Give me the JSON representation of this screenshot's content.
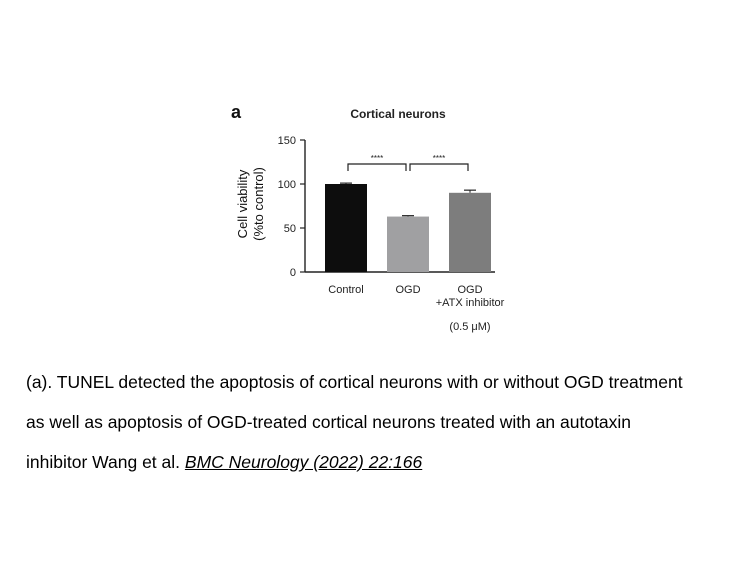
{
  "chart_data": {
    "type": "bar",
    "panel_label": "a",
    "title": "Cortical neurons",
    "ylabel_line1": "Cell viability",
    "ylabel_line2": "(%to control)",
    "ylim": [
      0,
      150
    ],
    "yticks": [
      0,
      50,
      100,
      150
    ],
    "categories": [
      "Control",
      "OGD",
      "OGD"
    ],
    "category_sublabels": [
      "",
      "",
      "+ATX inhibitor"
    ],
    "values": [
      100,
      63,
      90
    ],
    "errors": [
      1,
      1,
      3
    ],
    "bar_colors": [
      "#0d0d0d",
      "#a0a0a2",
      "#7d7d7d"
    ],
    "significance": [
      {
        "from": 0,
        "to": 1,
        "label": "****"
      },
      {
        "from": 1,
        "to": 2,
        "label": "****"
      }
    ],
    "dose_note": "(0.5 μM)",
    "grid": false,
    "legend": "none"
  },
  "caption": {
    "line1": "(a). TUNEL detected the apoptosis of cortical neurons with or without OGD treatment",
    "line2": "as well as apoptosis of OGD-treated cortical neurons treated with an autotaxin",
    "line3_prefix": "inhibitor Wang et al. ",
    "citation": "BMC Neurology (2022) 22:166"
  }
}
